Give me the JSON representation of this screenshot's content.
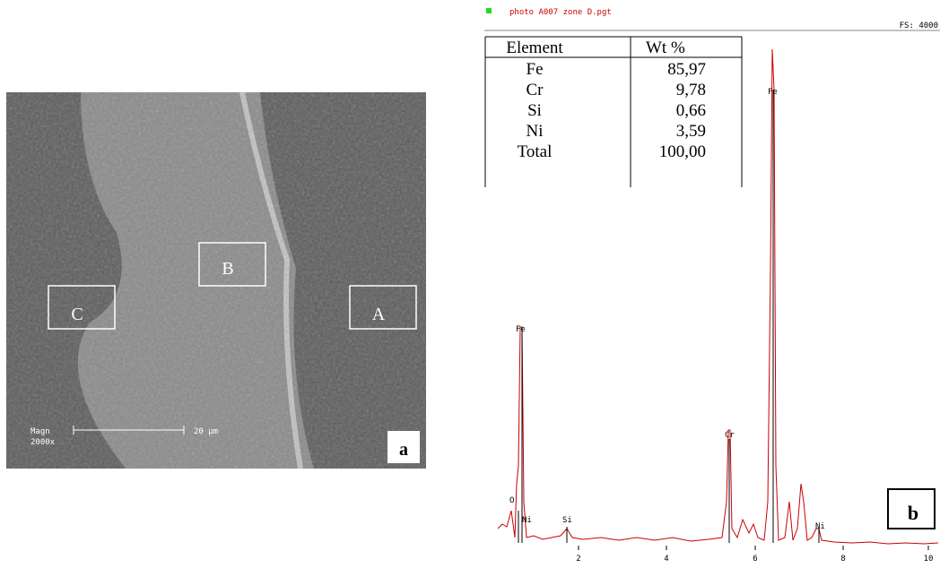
{
  "micrograph": {
    "regions": [
      "A",
      "B",
      "C"
    ],
    "scale": {
      "magnification_label": "Magn",
      "magnification": "2000x",
      "bar": "20 µm"
    },
    "panel_label": "a"
  },
  "spectrum": {
    "file": "photo A007 zone D.pgt",
    "full_scale": "FS: 4000",
    "panel_label": "b",
    "table": {
      "header": [
        "Element",
        "Wt %"
      ],
      "rows": [
        [
          "Fe",
          "85,97"
        ],
        [
          "Cr",
          "9,78"
        ],
        [
          "Si",
          "0,66"
        ],
        [
          "Ni",
          "3,59"
        ],
        [
          "Total",
          "100,00"
        ]
      ]
    },
    "peaks": [
      "O",
      "Fe",
      "Ni",
      "Si",
      "Cr",
      "Fe",
      "Ni"
    ],
    "axis_ticks": [
      "2",
      "4",
      "6",
      "8",
      "10"
    ]
  }
}
